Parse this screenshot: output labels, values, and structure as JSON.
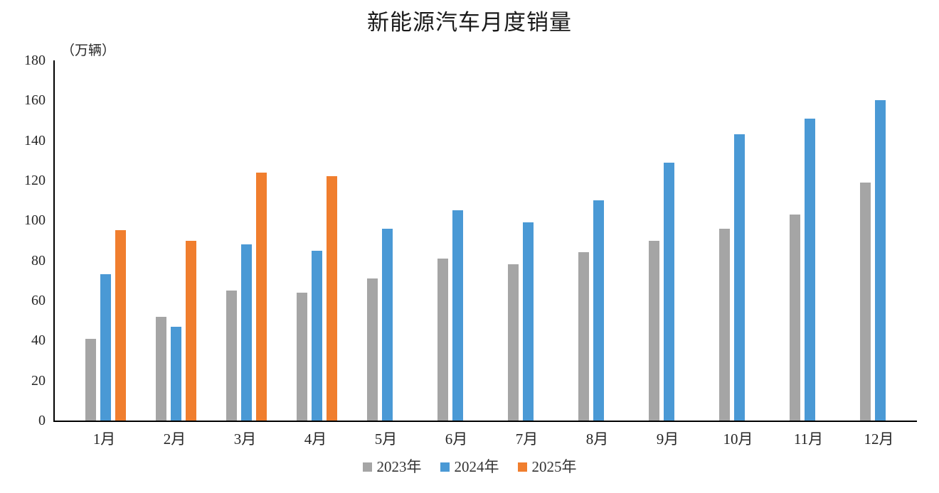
{
  "chart_data": {
    "type": "bar",
    "title": "新能源汽车月度销量",
    "unit_label": "（万辆）",
    "categories": [
      "1月",
      "2月",
      "3月",
      "4月",
      "5月",
      "6月",
      "7月",
      "8月",
      "9月",
      "10月",
      "11月",
      "12月"
    ],
    "series": [
      {
        "name": "2023年",
        "color": "#A5A5A5",
        "values": [
          41,
          52,
          65,
          64,
          71,
          81,
          78,
          84,
          90,
          96,
          103,
          119
        ]
      },
      {
        "name": "2024年",
        "color": "#4A99D5",
        "values": [
          73,
          47,
          88,
          85,
          96,
          105,
          99,
          110,
          129,
          143,
          151,
          160
        ]
      },
      {
        "name": "2025年",
        "color": "#F07E2E",
        "values": [
          95,
          90,
          124,
          122,
          null,
          null,
          null,
          null,
          null,
          null,
          null,
          null
        ]
      }
    ],
    "ylim": [
      0,
      180
    ],
    "ytick_step": 20,
    "grid": false,
    "legend_position": "bottom",
    "axis_color": "#000000",
    "text_color": "#262626"
  }
}
